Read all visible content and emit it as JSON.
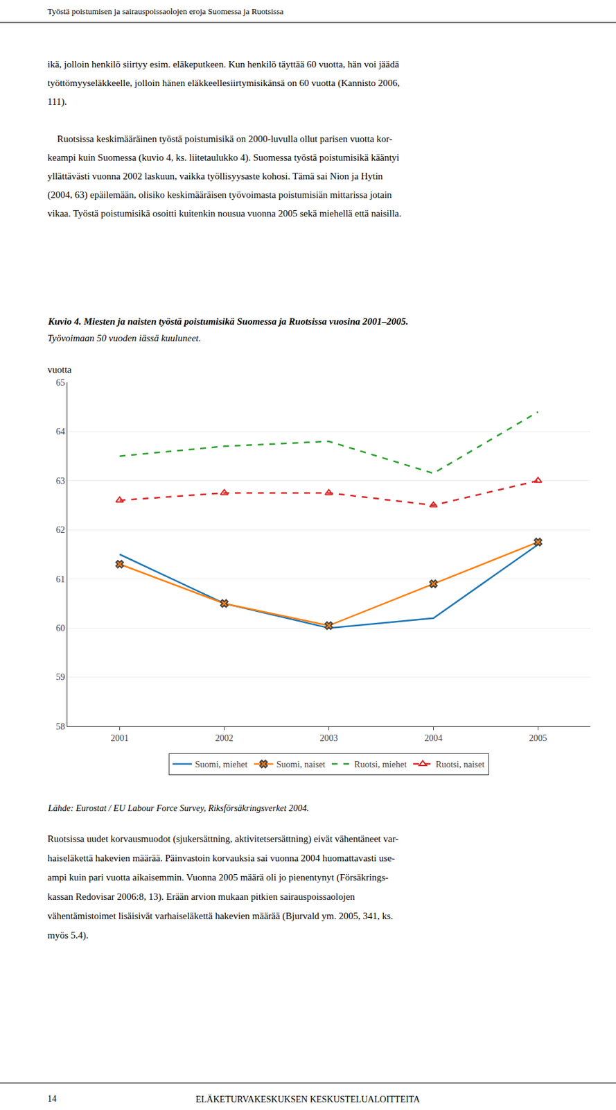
{
  "chart_data": {
    "type": "line",
    "title": "Kuvio 4. Miesten ja naisten työstä poistumisikä Suomessa ja Ruotsissa vuosina 2001–2005.",
    "subtitle": "Työvoimaan 50 vuoden iässä kuuluneet.",
    "y_label": "vuotta",
    "x": [
      2001,
      2002,
      2003,
      2004,
      2005
    ],
    "xlim": [
      2000.5,
      2005.5
    ],
    "xticks": [
      2001,
      2002,
      2003,
      2004,
      2005
    ],
    "ylim": [
      58,
      65
    ],
    "yticks": [
      58,
      59,
      60,
      61,
      62,
      63,
      64,
      65
    ],
    "grid": "y",
    "legend": "bottom",
    "series": [
      {
        "name": "Suomi, miehet",
        "values": [
          61.5,
          60.5,
          60.0,
          60.2,
          61.7
        ],
        "line_style": "solid",
        "marker": "none"
      },
      {
        "name": "Suomi, naiset",
        "values": [
          61.3,
          60.5,
          60.05,
          60.9,
          61.75
        ],
        "line_style": "solid",
        "marker": "x"
      },
      {
        "name": "Ruotsi, miehet",
        "values": [
          63.5,
          63.7,
          63.8,
          63.15,
          64.4
        ],
        "line_style": "dash",
        "marker": "none"
      },
      {
        "name": "Ruotsi, naiset",
        "values": [
          62.6,
          62.75,
          62.75,
          62.5,
          63.0
        ],
        "line_style": "dash",
        "marker": "triangle-up-open"
      }
    ],
    "annotations": [
      "Työstä poistumisen ja sairauspoissaolojen eroja Suomessa ja Ruotsissa",
      "ikä, jolloin henkilö siirtyy esim. eläkeputkeen. Kun henkilö täyttää 60 vuotta, hän voi jäädä",
      "työttömyyseläkkeelle, jolloin hänen eläkkeellesiirtymisikänsä on 60 vuotta (Kannisto 2006,",
      "111).",
      "    Ruotsissa keskimääräinen työstä poistumisikä on 2000-luvulla ollut parisen vuotta kor-",
      "keampi kuin Suomessa (kuvio 4, ks. liitetaulukko 4). Suomessa työstä poistumisikä kääntyi",
      "yllättävästi vuonna 2002 laskuun, vaikka työllisyysaste kohosi. Tämä sai Nion ja Hytin",
      "(2004, 63) epäilemään, olisiko keskimääräisen työvoimasta poistumisiän mittarissa jotain",
      "vikaa. Työstä poistumisikä osoitti kuitenkin nousua vuonna 2005 sekä miehellä että naisilla.",
      "Lähde: Eurostat / EU Labour Force Survey, Riksförsäkringsverket 2004.",
      "Ruotsissa uudet korvausmuodot (sjukersättning, aktivitetsersättning) eivät vähentäneet var-",
      "haiseläkettä hakevien määrää. Päinvastoin korvauksia sai vuonna 2004 huomattavasti use-",
      "ampi kuin pari vuotta aikaisemmin. Vuonna 2005 määrä oli jo pienentynyt (Försäkrings-",
      "kassan Redovisar 2006:8, 13). Erään arvion mukaan pitkien sairauspoissaolojen",
      "vähentämistoimet lisäisivät varhaiseläkettä hakevien määrää (Bjurvald ym. 2005, 341, ks.",
      "myös 5.4).",
      "14",
      "ELÄKETURVAKESKUKSEN KESKUSTELUALOITTEITA"
    ]
  }
}
